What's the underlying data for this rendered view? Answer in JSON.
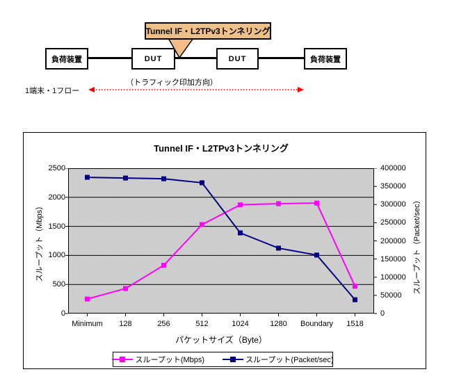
{
  "diagram": {
    "callout_label": "Tunnel IF・L2TPv3トンネリング",
    "nodes": [
      "負荷装置",
      "DUT",
      "DUT",
      "負荷装置"
    ],
    "traffic_direction_label": "（トラフィック印加方向）",
    "flow_label": "1端末・1フロー",
    "colors": {
      "callout_fill": "#F3BD85",
      "callout_border": "#000000",
      "arrow_red": "#FF0000",
      "link_line": "#000000"
    }
  },
  "chart_data": {
    "type": "line",
    "title": "Tunnel IF・L2TPv3トンネリング",
    "categories": [
      "Minimum",
      "128",
      "256",
      "512",
      "1024",
      "1280",
      "Boundary",
      "1518"
    ],
    "series": [
      {
        "name": "スループット(Mbps)",
        "axis": "left",
        "color": "#FF00FF",
        "marker": "square",
        "values": [
          250,
          430,
          830,
          1530,
          1870,
          1890,
          1900,
          470
        ]
      },
      {
        "name": "スループット(Packet/sec)",
        "axis": "right",
        "color": "#000080",
        "marker": "square",
        "values": [
          375000,
          373000,
          371000,
          360000,
          222000,
          180000,
          161000,
          38000
        ]
      }
    ],
    "xlabel": "パケットサイズ（Byte）",
    "ylabel_left": "スループット（Mbps）",
    "ylabel_right": "スループット（Packet/sec）",
    "ylim_left": [
      0,
      2500
    ],
    "ytick_step_left": 500,
    "ylim_right": [
      0,
      400000
    ],
    "ytick_step_right": 50000,
    "grid": "horizontal",
    "plot_bg": "#CDCDCD",
    "legend_position": "bottom"
  }
}
